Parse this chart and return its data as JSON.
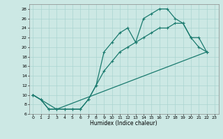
{
  "xlabel": "Humidex (Indice chaleur)",
  "bg_color": "#cce8e4",
  "grid_color": "#aad4d0",
  "line_color": "#1a7a6e",
  "xlim": [
    -0.5,
    23.5
  ],
  "ylim": [
    6,
    29
  ],
  "xticks": [
    0,
    1,
    2,
    3,
    4,
    5,
    6,
    7,
    8,
    9,
    10,
    11,
    12,
    13,
    14,
    15,
    16,
    17,
    18,
    19,
    20,
    21,
    22,
    23
  ],
  "yticks": [
    6,
    8,
    10,
    12,
    14,
    16,
    18,
    20,
    22,
    24,
    26,
    28
  ],
  "line1_x": [
    0,
    1,
    2,
    3,
    4,
    5,
    6,
    7,
    8,
    9,
    10,
    11,
    12,
    13,
    14,
    15,
    16,
    17,
    18,
    19,
    20,
    21,
    22
  ],
  "line1_y": [
    10,
    9,
    7,
    7,
    7,
    7,
    7,
    9,
    12,
    19,
    21,
    23,
    24,
    21,
    26,
    27,
    28,
    28,
    26,
    25,
    22,
    20,
    19
  ],
  "line2_x": [
    0,
    1,
    2,
    3,
    4,
    5,
    6,
    7,
    8,
    9,
    10,
    11,
    12,
    13,
    14,
    15,
    16,
    17,
    18,
    19,
    20,
    21,
    22
  ],
  "line2_y": [
    10,
    9,
    7,
    7,
    7,
    7,
    7,
    9,
    12,
    15,
    17,
    19,
    20,
    21,
    22,
    23,
    24,
    24,
    25,
    25,
    22,
    22,
    19
  ],
  "line3_x": [
    0,
    3,
    22
  ],
  "line3_y": [
    10,
    7,
    19
  ]
}
